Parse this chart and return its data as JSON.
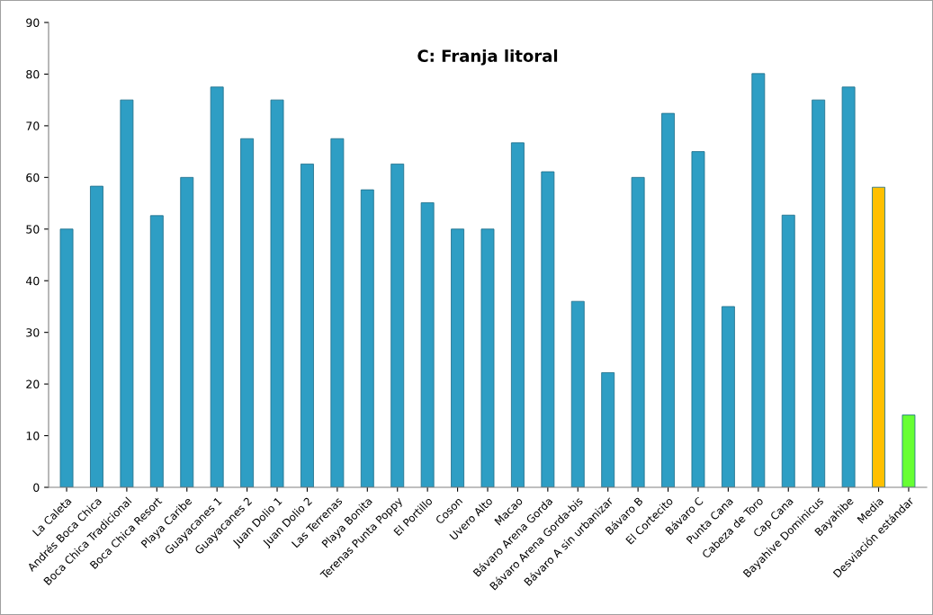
{
  "chart_data": {
    "type": "bar",
    "title": "C: Franja litoral",
    "categories": [
      "La Caleta",
      "Andrés Boca Chica",
      "Boca Chica Tradicional",
      "Boca Chica Resort",
      "Playa Caribe",
      "Guayacanes 1",
      "Guayacanes 2",
      "Juan Dolio 1",
      "Juan Dolio 2",
      "Las Terrenas",
      "Playa Bonita",
      "Terenas Punta Poppy",
      "El Portillo",
      "Coson",
      "Uvero Alto",
      "Macao",
      "Bávaro Arena Gorda",
      "Bávaro Arena Gorda-bis",
      "Bávaro A sin urbanizar",
      "Bávaro B",
      "El Cortecito",
      "Bávaro C",
      "Punta Cana",
      "Cabeza de Toro",
      "Cap Cana",
      "Bayahive Dominicus",
      "Bayahibe",
      "Media",
      "Desviación estándar"
    ],
    "values": [
      50,
      58.3,
      75,
      52.6,
      60,
      77.5,
      67.5,
      75,
      62.6,
      67.5,
      57.6,
      62.6,
      55.1,
      50,
      50,
      66.7,
      61.1,
      36,
      22.2,
      60,
      72.4,
      65,
      35,
      80.1,
      52.7,
      75,
      77.5,
      58.1,
      14
    ],
    "colors": [
      "#2e9ec4",
      "#2e9ec4",
      "#2e9ec4",
      "#2e9ec4",
      "#2e9ec4",
      "#2e9ec4",
      "#2e9ec4",
      "#2e9ec4",
      "#2e9ec4",
      "#2e9ec4",
      "#2e9ec4",
      "#2e9ec4",
      "#2e9ec4",
      "#2e9ec4",
      "#2e9ec4",
      "#2e9ec4",
      "#2e9ec4",
      "#2e9ec4",
      "#2e9ec4",
      "#2e9ec4",
      "#2e9ec4",
      "#2e9ec4",
      "#2e9ec4",
      "#2e9ec4",
      "#2e9ec4",
      "#2e9ec4",
      "#2e9ec4",
      "#ffc000",
      "#66ff33"
    ],
    "ylim": [
      0,
      90
    ],
    "yticks": [
      0,
      10,
      20,
      30,
      40,
      50,
      60,
      70,
      80,
      90
    ],
    "grid": false,
    "legend": false
  }
}
